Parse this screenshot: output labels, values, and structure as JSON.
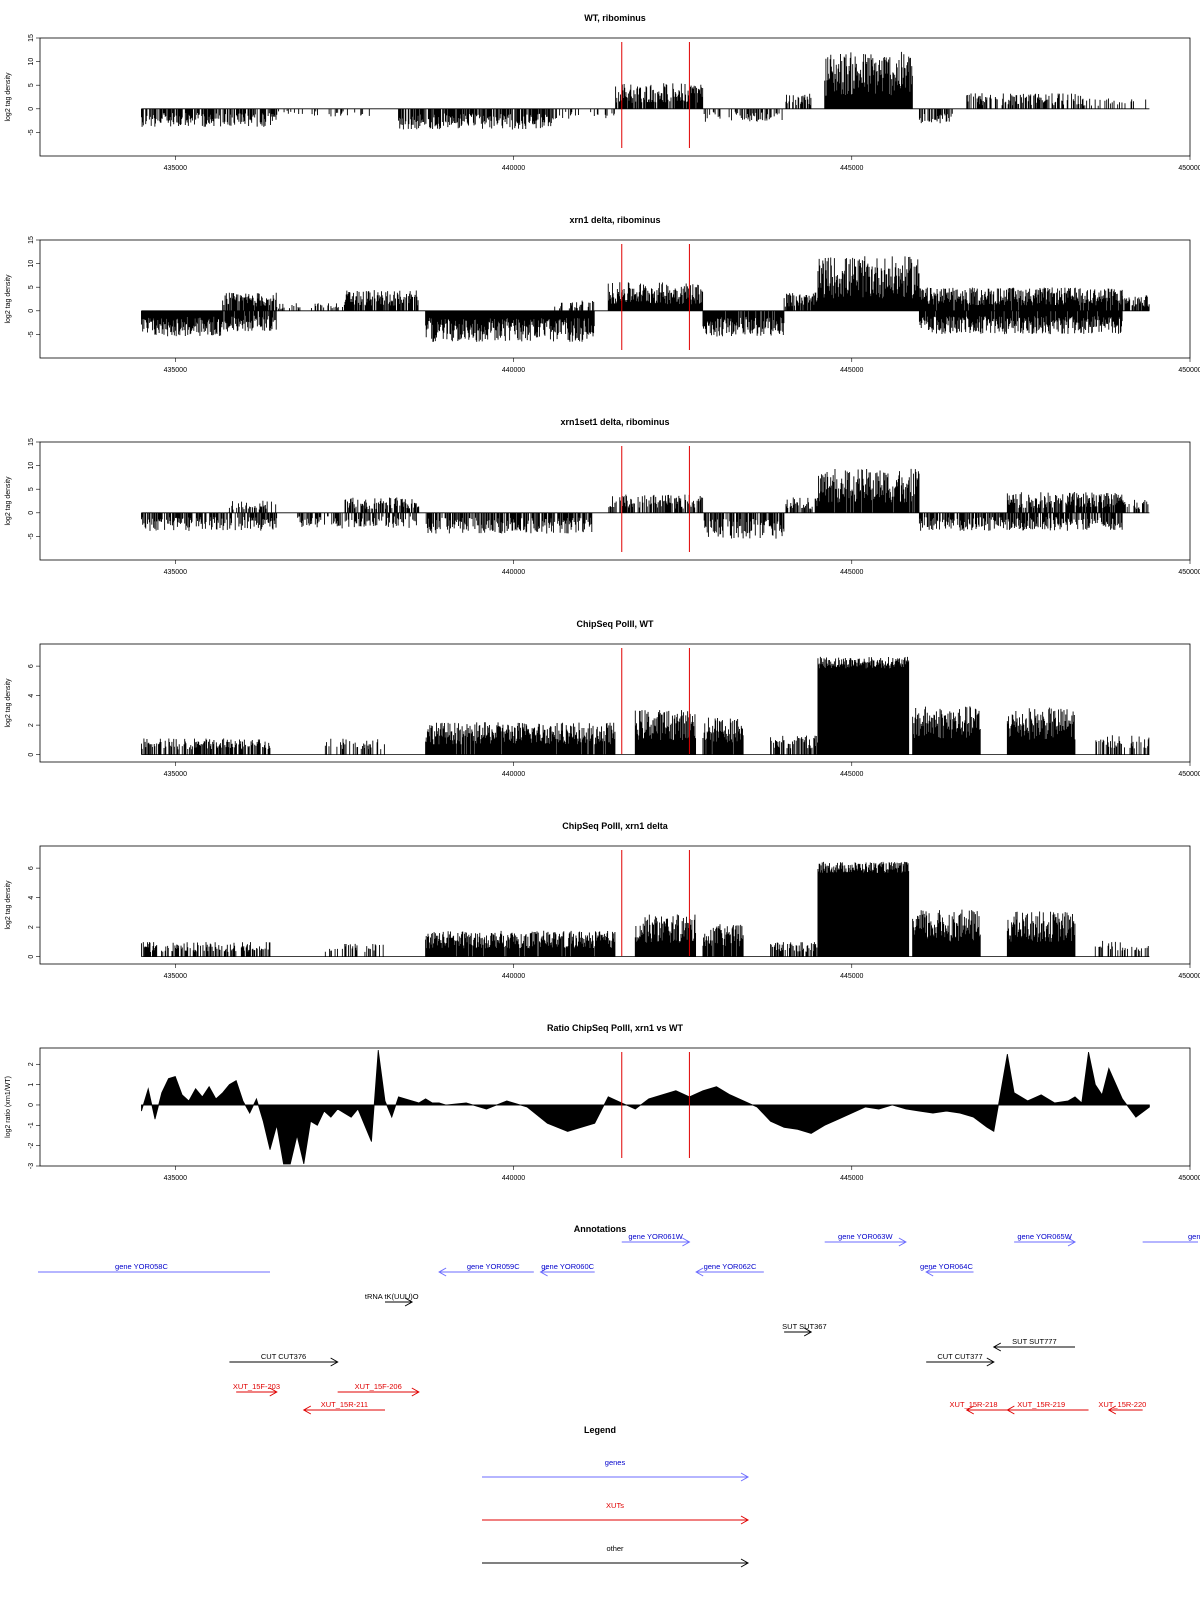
{
  "panels": [
    {
      "title": "WT, ribominus",
      "ylabel": "log2 tag density",
      "type": "ribo"
    },
    {
      "title": "xrn1 delta, ribominus",
      "ylabel": "log2 tag density",
      "type": "ribo"
    },
    {
      "title": "xrn1set1 delta, ribominus",
      "ylabel": "log2 tag density",
      "type": "ribo"
    },
    {
      "title": "ChipSeq PolII, WT",
      "ylabel": "log2 tag density",
      "type": "chip"
    },
    {
      "title": "ChipSeq PolII, xrn1 delta",
      "ylabel": "log2 tag density",
      "type": "chip"
    },
    {
      "title": "Ratio ChipSeq PolII, xrn1 vs WT",
      "ylabel": "log2 ratio (xrn1/WT)",
      "type": "ratio"
    }
  ],
  "annotations_title": "Annotations",
  "legend_title": "Legend",
  "colors": {
    "gene": "#0000cc",
    "xut": "#e00000",
    "other": "#000000",
    "marker": "#e00000",
    "gene_line": "#6b6bff",
    "xut_line": "#e00000"
  },
  "annotations": [
    {
      "label": "gene YOR058C",
      "category": "gene",
      "start": 432100,
      "end": 436400,
      "strand": "none",
      "label_x": 434500,
      "row": 0
    },
    {
      "label": "gene YOR059C",
      "category": "gene",
      "start": 438900,
      "end": 440300,
      "strand": "-",
      "label_x": 439700,
      "row": 0
    },
    {
      "label": "gene YOR060C",
      "category": "gene",
      "start": 440400,
      "end": 441200,
      "strand": "-",
      "label_x": 440800,
      "row": 0
    },
    {
      "label": "gene YOR061W",
      "category": "gene",
      "start": 441600,
      "end": 442600,
      "strand": "+",
      "label_x": 442100,
      "row": -1
    },
    {
      "label": "gene YOR062C",
      "category": "gene",
      "start": 442700,
      "end": 443700,
      "strand": "-",
      "label_x": 443200,
      "row": 0
    },
    {
      "label": "gene YOR063W",
      "category": "gene",
      "start": 444600,
      "end": 445800,
      "strand": "+",
      "label_x": 445200,
      "row": -1
    },
    {
      "label": "gene YOR064C",
      "category": "gene",
      "start": 446100,
      "end": 446800,
      "strand": "-",
      "label_x": 446400,
      "row": 0
    },
    {
      "label": "gene YOR065W",
      "category": "gene",
      "start": 447400,
      "end": 448300,
      "strand": "+",
      "label_x": 447850,
      "row": -1
    },
    {
      "label": "gen",
      "category": "gene",
      "start": 449300,
      "end": 450200,
      "strand": "none",
      "label_x": 450000,
      "row": -1
    },
    {
      "label": "tRNA tK(UUU)O",
      "category": "other",
      "start": 438100,
      "end": 438500,
      "strand": "+",
      "label_x": 438200,
      "row": 1
    },
    {
      "label": "SUT SUT367",
      "category": "other",
      "start": 444000,
      "end": 444400,
      "strand": "+",
      "label_x": 444300,
      "row": 2
    },
    {
      "label": "CUT CUT376",
      "category": "other",
      "start": 435800,
      "end": 437400,
      "strand": "+",
      "label_x": 436600,
      "row": 3
    },
    {
      "label": "CUT CUT377",
      "category": "other",
      "start": 446100,
      "end": 447100,
      "strand": "+",
      "label_x": 446600,
      "row": 3
    },
    {
      "label": "SUT SUT777",
      "category": "other",
      "start": 447100,
      "end": 448300,
      "strand": "-",
      "label_x": 447700,
      "row": 2.5
    },
    {
      "label": "XUT_15F-203",
      "category": "xut",
      "start": 435900,
      "end": 436500,
      "strand": "+",
      "label_x": 436200,
      "row": 4
    },
    {
      "label": "XUT_15R-211",
      "category": "xut",
      "start": 436900,
      "end": 438100,
      "strand": "-",
      "label_x": 437500,
      "row": 4.6
    },
    {
      "label": "XUT_15F-206",
      "category": "xut",
      "start": 437400,
      "end": 438600,
      "strand": "+",
      "label_x": 438000,
      "row": 4
    },
    {
      "label": "XUT_15R-218",
      "category": "xut",
      "start": 446700,
      "end": 447300,
      "strand": "-",
      "label_x": 446800,
      "row": 4.6
    },
    {
      "label": "XUT_15R-219",
      "category": "xut",
      "start": 447300,
      "end": 448500,
      "strand": "-",
      "label_x": 447800,
      "row": 4.6
    },
    {
      "label": "XUT_15R-220",
      "category": "xut",
      "start": 448800,
      "end": 449300,
      "strand": "-",
      "label_x": 449000,
      "row": 4.6
    }
  ],
  "legend": [
    {
      "label": "genes",
      "category": "gene"
    },
    {
      "label": "XUTs",
      "category": "xut"
    },
    {
      "label": "other",
      "category": "other"
    }
  ],
  "chart_data": [
    {
      "type": "bar",
      "title": "WT, ribominus",
      "ylabel": "log2 tag density",
      "xlim": [
        433000,
        450000
      ],
      "ylim": [
        -10,
        15
      ],
      "yticks": [
        -5,
        0,
        5,
        10,
        15
      ],
      "xticks": [
        435000,
        440000,
        445000,
        450000
      ],
      "markers": [
        441600,
        442600
      ],
      "segments": [
        {
          "start": 434500,
          "end": 436500,
          "amp": -3.5,
          "density": 0.7
        },
        {
          "start": 436500,
          "end": 438000,
          "amp": -1.5,
          "density": 0.15
        },
        {
          "start": 438300,
          "end": 440600,
          "amp": -4.0,
          "density": 0.75
        },
        {
          "start": 440600,
          "end": 441500,
          "amp": -2.0,
          "density": 0.2
        },
        {
          "start": 441500,
          "end": 442800,
          "amp": 5.0,
          "density": 0.85
        },
        {
          "start": 442800,
          "end": 444000,
          "amp": -2.5,
          "density": 0.35
        },
        {
          "start": 444000,
          "end": 444400,
          "amp": 3.0,
          "density": 0.5
        },
        {
          "start": 444600,
          "end": 445900,
          "amp": 11.0,
          "density": 1.0
        },
        {
          "start": 446000,
          "end": 446500,
          "amp": -3.0,
          "density": 0.5
        },
        {
          "start": 446700,
          "end": 448400,
          "amp": 3.0,
          "density": 0.55
        },
        {
          "start": 448400,
          "end": 449400,
          "amp": 2.0,
          "density": 0.25
        }
      ]
    },
    {
      "type": "bar",
      "title": "xrn1 delta, ribominus",
      "ylabel": "log2 tag density",
      "xlim": [
        433000,
        450000
      ],
      "ylim": [
        -10,
        15
      ],
      "yticks": [
        -5,
        0,
        5,
        10,
        15
      ],
      "xticks": [
        435000,
        440000,
        445000,
        450000
      ],
      "markers": [
        441600,
        442600
      ],
      "segments": [
        {
          "start": 434500,
          "end": 435700,
          "amp": -5.0,
          "density": 1.0
        },
        {
          "start": 435700,
          "end": 436500,
          "amp": 3.5,
          "density": 0.8
        },
        {
          "start": 435700,
          "end": 436500,
          "amp": -4.0,
          "density": 0.8
        },
        {
          "start": 436500,
          "end": 437500,
          "amp": 1.5,
          "density": 0.2
        },
        {
          "start": 437500,
          "end": 438600,
          "amp": 4.0,
          "density": 0.8
        },
        {
          "start": 438700,
          "end": 441200,
          "amp": -6.0,
          "density": 1.0
        },
        {
          "start": 440600,
          "end": 441200,
          "amp": 2.0,
          "density": 0.4
        },
        {
          "start": 441400,
          "end": 442800,
          "amp": 5.5,
          "density": 1.0
        },
        {
          "start": 442800,
          "end": 444000,
          "amp": -5.0,
          "density": 0.9
        },
        {
          "start": 444000,
          "end": 444500,
          "amp": 3.5,
          "density": 0.8
        },
        {
          "start": 444500,
          "end": 446000,
          "amp": 10.5,
          "density": 1.0
        },
        {
          "start": 446000,
          "end": 449000,
          "amp": -4.5,
          "density": 0.95
        },
        {
          "start": 446000,
          "end": 449000,
          "amp": 4.5,
          "density": 0.95
        },
        {
          "start": 449000,
          "end": 449400,
          "amp": 3.0,
          "density": 0.8
        }
      ]
    },
    {
      "type": "bar",
      "title": "xrn1set1 delta, ribominus",
      "ylabel": "log2 tag density",
      "xlim": [
        433000,
        450000
      ],
      "ylim": [
        -10,
        15
      ],
      "yticks": [
        -5,
        0,
        5,
        10,
        15
      ],
      "xticks": [
        435000,
        440000,
        445000,
        450000
      ],
      "markers": [
        441600,
        442600
      ],
      "segments": [
        {
          "start": 434500,
          "end": 436500,
          "amp": -3.5,
          "density": 0.6
        },
        {
          "start": 435800,
          "end": 436500,
          "amp": 2.5,
          "density": 0.4
        },
        {
          "start": 437500,
          "end": 438600,
          "amp": 3.0,
          "density": 0.6
        },
        {
          "start": 436800,
          "end": 438600,
          "amp": -3.0,
          "density": 0.5
        },
        {
          "start": 438700,
          "end": 441200,
          "amp": -4.0,
          "density": 0.7
        },
        {
          "start": 441400,
          "end": 442800,
          "amp": 3.5,
          "density": 0.6
        },
        {
          "start": 442800,
          "end": 444000,
          "amp": -5.0,
          "density": 0.7
        },
        {
          "start": 444000,
          "end": 444500,
          "amp": 3.0,
          "density": 0.6
        },
        {
          "start": 444500,
          "end": 446000,
          "amp": 8.5,
          "density": 0.95
        },
        {
          "start": 446000,
          "end": 449000,
          "amp": -3.5,
          "density": 0.7
        },
        {
          "start": 447300,
          "end": 449000,
          "amp": 4.0,
          "density": 0.8
        },
        {
          "start": 449000,
          "end": 449400,
          "amp": 2.5,
          "density": 0.5
        }
      ]
    },
    {
      "type": "bar",
      "title": "ChipSeq PolII, WT",
      "ylabel": "log2 tag density",
      "xlim": [
        433000,
        450000
      ],
      "ylim": [
        -0.5,
        7.5
      ],
      "yticks": [
        0,
        2,
        4,
        6
      ],
      "xticks": [
        435000,
        440000,
        445000,
        450000
      ],
      "markers": [
        441600,
        442600
      ],
      "segments": [
        {
          "start": 434500,
          "end": 436400,
          "amp": 1.0,
          "density": 0.55
        },
        {
          "start": 437200,
          "end": 438100,
          "amp": 1.0,
          "density": 0.3
        },
        {
          "start": 438700,
          "end": 441500,
          "amp": 2.0,
          "density": 0.95
        },
        {
          "start": 441800,
          "end": 442700,
          "amp": 2.8,
          "density": 1.0
        },
        {
          "start": 442800,
          "end": 443400,
          "amp": 2.3,
          "density": 0.9
        },
        {
          "start": 443800,
          "end": 444500,
          "amp": 1.2,
          "density": 0.6
        },
        {
          "start": 444500,
          "end": 445850,
          "amp": 6.5,
          "density": 1.0
        },
        {
          "start": 445900,
          "end": 446900,
          "amp": 3.0,
          "density": 1.0
        },
        {
          "start": 447300,
          "end": 448300,
          "amp": 2.9,
          "density": 1.0
        },
        {
          "start": 448600,
          "end": 449400,
          "amp": 1.2,
          "density": 0.4
        }
      ]
    },
    {
      "type": "bar",
      "title": "ChipSeq PolII, xrn1 delta",
      "ylabel": "log2 tag density",
      "xlim": [
        433000,
        450000
      ],
      "ylim": [
        -0.5,
        7.5
      ],
      "yticks": [
        0,
        2,
        4,
        6
      ],
      "xticks": [
        435000,
        440000,
        445000,
        450000
      ],
      "markers": [
        441600,
        442600
      ],
      "segments": [
        {
          "start": 434500,
          "end": 436400,
          "amp": 0.9,
          "density": 0.55
        },
        {
          "start": 437200,
          "end": 438100,
          "amp": 0.8,
          "density": 0.3
        },
        {
          "start": 438700,
          "end": 441500,
          "amp": 1.6,
          "density": 0.95
        },
        {
          "start": 441800,
          "end": 442700,
          "amp": 2.6,
          "density": 1.0
        },
        {
          "start": 442800,
          "end": 443400,
          "amp": 2.0,
          "density": 0.9
        },
        {
          "start": 443800,
          "end": 444500,
          "amp": 0.9,
          "density": 0.5
        },
        {
          "start": 444500,
          "end": 445850,
          "amp": 6.3,
          "density": 1.0
        },
        {
          "start": 445900,
          "end": 446900,
          "amp": 2.9,
          "density": 1.0
        },
        {
          "start": 447300,
          "end": 448300,
          "amp": 2.8,
          "density": 1.0
        },
        {
          "start": 448600,
          "end": 449400,
          "amp": 1.0,
          "density": 0.4
        }
      ]
    },
    {
      "type": "area",
      "title": "Ratio ChipSeq PolII, xrn1 vs WT",
      "ylabel": "log2 ratio (xrn1/WT)",
      "xlim": [
        433000,
        450000
      ],
      "ylim": [
        -3,
        2.8
      ],
      "yticks": [
        -3,
        -2,
        -1,
        0,
        1,
        2
      ],
      "xticks": [
        435000,
        440000,
        445000,
        450000
      ],
      "markers": [
        441600,
        442600
      ],
      "x": [
        434500,
        434600,
        434700,
        434800,
        434900,
        435000,
        435100,
        435200,
        435300,
        435400,
        435500,
        435600,
        435700,
        435800,
        435900,
        436000,
        436100,
        436200,
        436300,
        436400,
        436500,
        436600,
        436700,
        436800,
        436900,
        437000,
        437100,
        437200,
        437300,
        437400,
        437500,
        437600,
        437700,
        437800,
        437900,
        438000,
        438100,
        438200,
        438300,
        438400,
        438500,
        438600,
        438700,
        438800,
        438900,
        439000,
        439300,
        439600,
        439900,
        440200,
        440500,
        440800,
        441000,
        441200,
        441400,
        441600,
        441800,
        442000,
        442200,
        442400,
        442600,
        442800,
        443000,
        443200,
        443400,
        443600,
        443800,
        444000,
        444200,
        444400,
        444600,
        444800,
        445000,
        445200,
        445400,
        445600,
        445800,
        446000,
        446200,
        446400,
        446600,
        446800,
        447000,
        447100,
        447200,
        447300,
        447400,
        447600,
        447800,
        448000,
        448200,
        448300,
        448400,
        448500,
        448600,
        448700,
        448800,
        449000,
        449200,
        449400
      ],
      "values": [
        -0.3,
        0.8,
        -0.7,
        0.6,
        1.3,
        1.4,
        0.5,
        0.2,
        0.8,
        0.4,
        0.9,
        0.3,
        0.6,
        1.0,
        1.2,
        0.2,
        -0.4,
        0.3,
        -0.8,
        -2.2,
        -1.0,
        -2.9,
        -2.9,
        -1.5,
        -2.9,
        -0.8,
        -1.0,
        -0.3,
        -0.6,
        -0.2,
        -0.4,
        -0.6,
        -0.2,
        -1.0,
        -1.8,
        2.7,
        0.2,
        -0.6,
        0.4,
        0.3,
        0.2,
        0.1,
        0.3,
        0.1,
        0.1,
        0.0,
        0.1,
        -0.2,
        0.2,
        -0.1,
        -0.9,
        -1.3,
        -1.1,
        -0.9,
        0.4,
        0.1,
        -0.2,
        0.3,
        0.5,
        0.7,
        0.4,
        0.7,
        0.9,
        0.5,
        0.2,
        -0.1,
        -0.8,
        -1.1,
        -1.2,
        -1.4,
        -1.0,
        -0.7,
        -0.4,
        -0.1,
        -0.2,
        0.0,
        -0.2,
        -0.3,
        -0.4,
        -0.3,
        -0.4,
        -0.6,
        -1.1,
        -1.3,
        0.6,
        2.5,
        0.6,
        0.2,
        0.5,
        0.1,
        0.2,
        0.4,
        0.1,
        2.6,
        1.0,
        0.5,
        1.8,
        0.3,
        -0.6,
        -0.1
      ]
    }
  ]
}
